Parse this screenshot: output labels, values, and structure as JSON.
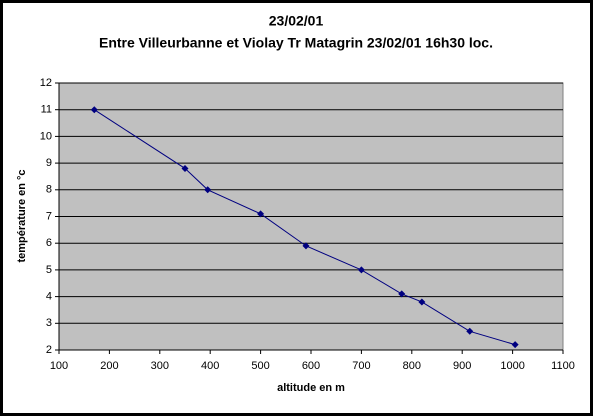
{
  "chart_data": {
    "type": "scatter-line",
    "title": "23/02/01",
    "subtitle": "Entre Villeurbanne et Violay Tr Matagrin 23/02/01 16h30 loc.",
    "x_label": "altitude en m",
    "y_label": "température en °c",
    "series": [
      {
        "name": "Température",
        "color": "#000080",
        "x": [
          170,
          350,
          395,
          500,
          590,
          700,
          780,
          820,
          915,
          1005
        ],
        "values": [
          11,
          8.8,
          8,
          7.1,
          5.9,
          5,
          4.1,
          3.8,
          2.7,
          2.2
        ]
      }
    ],
    "xlim": [
      100,
      1100
    ],
    "xticks": [
      100,
      200,
      300,
      400,
      500,
      600,
      700,
      800,
      900,
      1000,
      1100
    ],
    "ylim": [
      2,
      12
    ],
    "yticks": [
      2,
      3,
      4,
      5,
      6,
      7,
      8,
      9,
      10,
      11,
      12
    ],
    "grid": true,
    "plot_background": "#c0c0c0"
  }
}
